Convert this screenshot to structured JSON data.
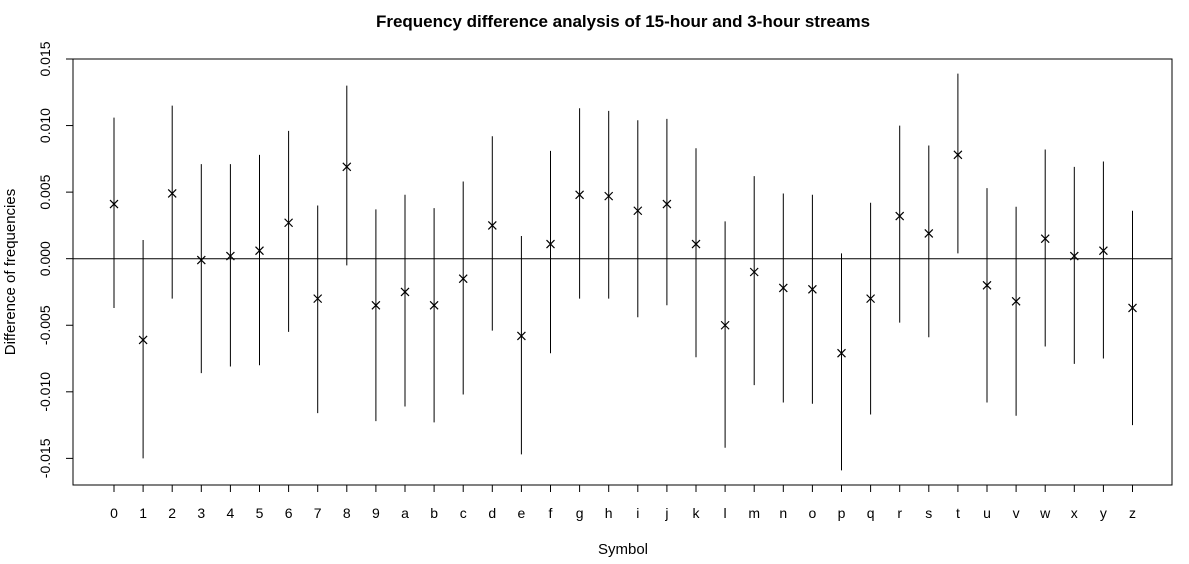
{
  "chart_data": {
    "type": "scatter",
    "title": "Frequency difference analysis of 15-hour and 3-hour streams",
    "xlabel": "Symbol",
    "ylabel": "Difference of frequencies",
    "ylim": [
      -0.017,
      0.015
    ],
    "yticks": [
      -0.015,
      -0.01,
      -0.005,
      0.0,
      0.005,
      0.01,
      0.015
    ],
    "ytick_labels": [
      "-0.015",
      "-0.010",
      "-0.005",
      "0.000",
      "0.005",
      "0.010",
      "0.015"
    ],
    "reference_line": 0,
    "grid": false,
    "marker": "x",
    "categories": [
      "0",
      "1",
      "2",
      "3",
      "4",
      "5",
      "6",
      "7",
      "8",
      "9",
      "a",
      "b",
      "c",
      "d",
      "e",
      "f",
      "g",
      "h",
      "i",
      "j",
      "k",
      "l",
      "m",
      "n",
      "o",
      "p",
      "q",
      "r",
      "s",
      "t",
      "u",
      "v",
      "w",
      "x",
      "y",
      "z"
    ],
    "values": [
      0.0041,
      -0.0061,
      0.0049,
      -0.0001,
      0.0002,
      0.0006,
      0.0027,
      -0.003,
      0.0069,
      -0.0035,
      -0.0025,
      -0.0035,
      -0.0015,
      0.0025,
      -0.0058,
      0.0011,
      0.0048,
      0.0047,
      0.0036,
      0.0041,
      0.0011,
      -0.005,
      -0.001,
      -0.0022,
      -0.0023,
      -0.0071,
      -0.003,
      0.0032,
      0.0019,
      0.0078,
      -0.002,
      -0.0032,
      0.0015,
      0.0002,
      0.0006,
      -0.0037
    ],
    "lower": [
      -0.0037,
      -0.015,
      -0.003,
      -0.0086,
      -0.0081,
      -0.008,
      -0.0055,
      -0.0116,
      -0.0005,
      -0.0122,
      -0.0111,
      -0.0123,
      -0.0102,
      -0.0054,
      -0.0147,
      -0.0071,
      -0.003,
      -0.003,
      -0.0044,
      -0.0035,
      -0.0074,
      -0.0142,
      -0.0095,
      -0.0108,
      -0.0109,
      -0.0159,
      -0.0117,
      -0.0048,
      -0.0059,
      0.0004,
      -0.0108,
      -0.0118,
      -0.0066,
      -0.0079,
      -0.0075,
      -0.0125
    ],
    "upper": [
      0.0106,
      0.0014,
      0.0115,
      0.0071,
      0.0071,
      0.0078,
      0.0096,
      0.004,
      0.013,
      0.0037,
      0.0048,
      0.0038,
      0.0058,
      0.0092,
      0.0017,
      0.0081,
      0.0113,
      0.0111,
      0.0104,
      0.0105,
      0.0083,
      0.0028,
      0.0062,
      0.0049,
      0.0048,
      0.0004,
      0.0042,
      0.01,
      0.0085,
      0.0139,
      0.0053,
      0.0039,
      0.0082,
      0.0069,
      0.0073,
      0.0036
    ]
  }
}
